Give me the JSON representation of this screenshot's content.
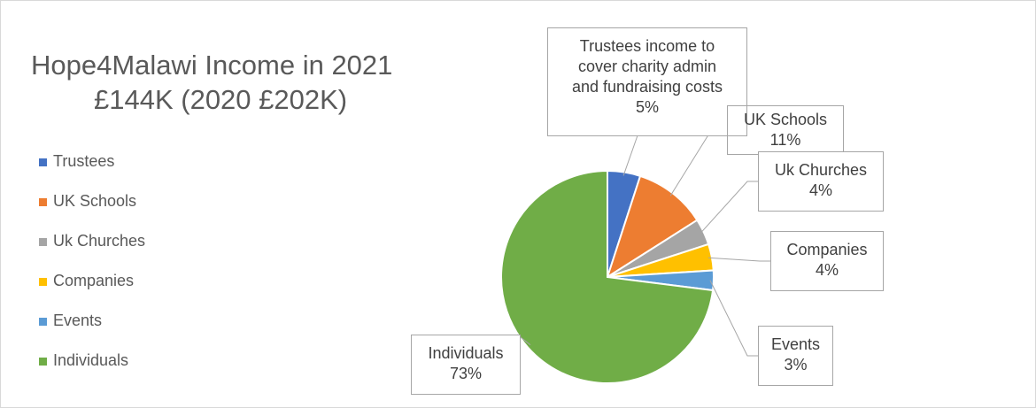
{
  "chart_data": {
    "type": "pie",
    "title": [
      "Hope4Malawi Income in 2021",
      "£144K (2020 £202K)"
    ],
    "legend_position": "left",
    "slices": [
      {
        "name": "Trustees",
        "value": 5,
        "color": "#4472c4",
        "data_label": [
          "Trustees income to",
          "cover charity admin",
          "and fundraising costs",
          "5%"
        ]
      },
      {
        "name": "UK Schools",
        "value": 11,
        "color": "#ed7d31",
        "data_label": [
          "UK Schools",
          "11%"
        ]
      },
      {
        "name": "Uk Churches",
        "value": 4,
        "color": "#a5a5a5",
        "data_label": [
          "Uk Churches",
          "4%"
        ]
      },
      {
        "name": "Companies",
        "value": 4,
        "color": "#ffc000",
        "data_label": [
          "Companies",
          "4%"
        ]
      },
      {
        "name": "Events",
        "value": 3,
        "color": "#5b9bd5",
        "data_label": [
          "Events",
          "3%"
        ]
      },
      {
        "name": "Individuals",
        "value": 73,
        "color": "#70ad47",
        "data_label": [
          "Individuals",
          "73%"
        ]
      }
    ]
  }
}
